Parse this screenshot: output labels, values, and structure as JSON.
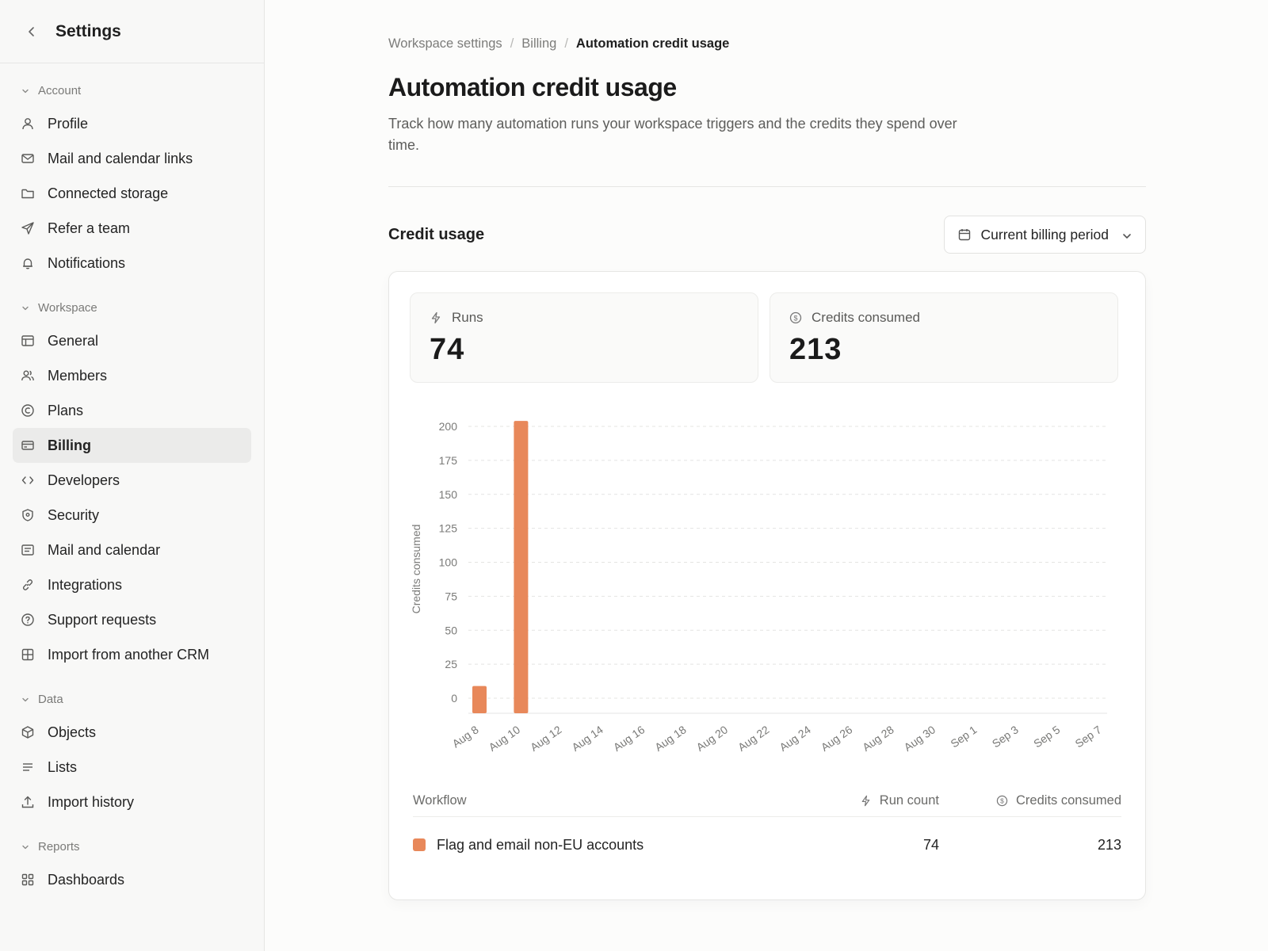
{
  "sidebar": {
    "title": "Settings",
    "groups": [
      {
        "label": "Account",
        "items": [
          {
            "label": "Profile",
            "icon": "user-icon"
          },
          {
            "label": "Mail and calendar links",
            "icon": "mail-icon"
          },
          {
            "label": "Connected storage",
            "icon": "folder-icon"
          },
          {
            "label": "Refer a team",
            "icon": "send-icon"
          },
          {
            "label": "Notifications",
            "icon": "bell-icon"
          }
        ]
      },
      {
        "label": "Workspace",
        "items": [
          {
            "label": "General",
            "icon": "layout-icon"
          },
          {
            "label": "Members",
            "icon": "users-icon"
          },
          {
            "label": "Plans",
            "icon": "copyright-icon"
          },
          {
            "label": "Billing",
            "icon": "credit-card-icon",
            "active": true
          },
          {
            "label": "Developers",
            "icon": "code-icon"
          },
          {
            "label": "Security",
            "icon": "shield-icon"
          },
          {
            "label": "Mail and calendar",
            "icon": "mail-calendar-icon"
          },
          {
            "label": "Integrations",
            "icon": "link-icon"
          },
          {
            "label": "Support requests",
            "icon": "help-circle-icon"
          },
          {
            "label": "Import from another CRM",
            "icon": "grid-icon"
          }
        ]
      },
      {
        "label": "Data",
        "items": [
          {
            "label": "Objects",
            "icon": "cube-icon"
          },
          {
            "label": "Lists",
            "icon": "list-icon"
          },
          {
            "label": "Import history",
            "icon": "upload-icon"
          }
        ]
      },
      {
        "label": "Reports",
        "items": [
          {
            "label": "Dashboards",
            "icon": "dashboard-icon"
          }
        ]
      }
    ]
  },
  "breadcrumb": {
    "items": [
      "Workspace settings",
      "Billing"
    ],
    "current": "Automation credit usage"
  },
  "page": {
    "title": "Automation credit usage",
    "description": "Track how many automation runs your workspace triggers and the credits they spend over time."
  },
  "credit_usage": {
    "title": "Credit usage",
    "period_label": "Current billing period"
  },
  "stats": {
    "runs_label": "Runs",
    "runs_value": "74",
    "credits_label": "Credits consumed",
    "credits_value": "213"
  },
  "colors": {
    "accent": "#e8885a"
  },
  "chart_data": {
    "type": "bar",
    "ylabel": "Credits consumed",
    "xlabel": "",
    "ylim": [
      0,
      200
    ],
    "yticks": [
      0,
      25,
      50,
      75,
      100,
      125,
      150,
      175,
      200
    ],
    "xticks": [
      "Aug 8",
      "Aug 10",
      "Aug 12",
      "Aug 14",
      "Aug 16",
      "Aug 18",
      "Aug 20",
      "Aug 22",
      "Aug 24",
      "Aug 26",
      "Aug 28",
      "Aug 30",
      "Sep 1",
      "Sep 3",
      "Sep 5",
      "Sep 7"
    ],
    "grid": true,
    "series": [
      {
        "name": "Flag and email non-EU accounts",
        "color": "#e8885a",
        "points": [
          {
            "x": "Aug 8",
            "y": 9
          },
          {
            "x": "Aug 10",
            "y": 204
          }
        ]
      }
    ]
  },
  "table": {
    "headers": {
      "workflow": "Workflow",
      "run_count": "Run count",
      "credits": "Credits consumed"
    },
    "rows": [
      {
        "workflow": "Flag and email non-EU accounts",
        "run_count": "74",
        "credits": "213",
        "color": "#e8885a"
      }
    ]
  }
}
